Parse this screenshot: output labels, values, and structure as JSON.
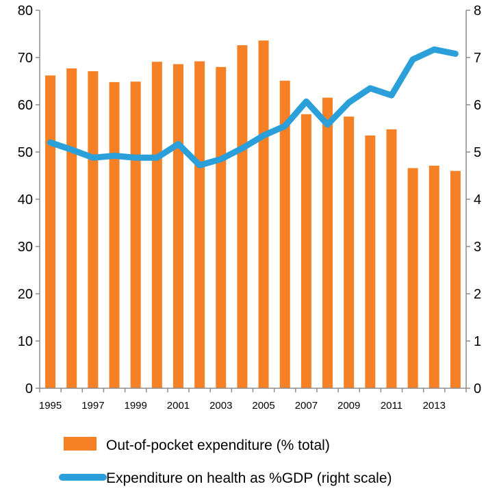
{
  "chart_data": {
    "type": "bar+line",
    "categories": [
      "1995",
      "1996",
      "1997",
      "1998",
      "1999",
      "2000",
      "2001",
      "2002",
      "2003",
      "2004",
      "2005",
      "2006",
      "2007",
      "2008",
      "2009",
      "2010",
      "2011",
      "2012",
      "2013",
      "2014"
    ],
    "x_tick_labels": [
      "1995",
      "1997",
      "1999",
      "2001",
      "2003",
      "2005",
      "2007",
      "2009",
      "2011",
      "2013"
    ],
    "y_left": {
      "min": 0,
      "max": 80,
      "ticks": [
        0,
        10,
        20,
        30,
        40,
        50,
        60,
        70,
        80
      ]
    },
    "y_right": {
      "min": 0,
      "max": 8,
      "ticks": [
        0,
        1,
        2,
        3,
        4,
        5,
        6,
        7,
        8
      ]
    },
    "series": [
      {
        "name": "Out-of-pocket expenditure (% total)",
        "type": "bar",
        "axis": "left",
        "color": "#f58025",
        "values": [
          66.2,
          67.7,
          67.1,
          64.8,
          64.9,
          69.1,
          68.6,
          69.2,
          68.0,
          72.6,
          73.6,
          65.1,
          58.0,
          61.5,
          57.5,
          53.5,
          54.8,
          46.6,
          47.1,
          46.0
        ]
      },
      {
        "name": "Expenditure on health as %GDP (right scale)",
        "type": "line",
        "axis": "right",
        "color": "#2b9fd9",
        "values": [
          5.2,
          5.05,
          4.88,
          4.92,
          4.88,
          4.88,
          5.17,
          4.72,
          4.85,
          5.08,
          5.35,
          5.55,
          6.07,
          5.58,
          6.05,
          6.35,
          6.2,
          6.96,
          7.17,
          7.08
        ]
      }
    ],
    "grid": false,
    "legend_position": "bottom"
  },
  "legend": {
    "bar_label": "Out-of-pocket expenditure (% total)",
    "line_label": "Expenditure on health as %GDP (right scale)"
  }
}
